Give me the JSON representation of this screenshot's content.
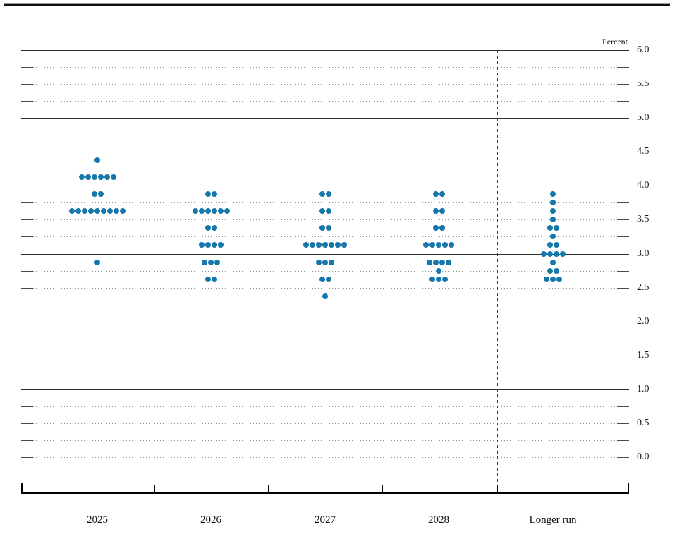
{
  "chart": {
    "percent_label": "Percent",
    "y_ticks": [
      "6.0",
      "5.5",
      "5.0",
      "4.5",
      "4.0",
      "3.5",
      "3.0",
      "2.5",
      "2.0",
      "1.5",
      "1.0",
      "0.5",
      "0.0"
    ]
  },
  "chart_data": {
    "type": "scatter",
    "subtype": "fomc-dot-plot",
    "title": "",
    "xlabel": "",
    "ylabel": "Percent",
    "ylim": [
      0.0,
      6.0
    ],
    "y_tick_step": 0.5,
    "gridline_step": 0.25,
    "grid": "dotted lines every 0.25 percent; solid lines at integer percents; dashed vertical separator before Longer run",
    "legend": "none",
    "categories": [
      "2025",
      "2026",
      "2027",
      "2028",
      "Longer run"
    ],
    "series": [
      {
        "name": "2025",
        "dots": [
          {
            "rate": 4.375,
            "count": 1
          },
          {
            "rate": 4.125,
            "count": 6
          },
          {
            "rate": 3.875,
            "count": 2
          },
          {
            "rate": 3.625,
            "count": 9
          },
          {
            "rate": 2.875,
            "count": 1
          }
        ]
      },
      {
        "name": "2026",
        "dots": [
          {
            "rate": 3.875,
            "count": 2
          },
          {
            "rate": 3.625,
            "count": 6
          },
          {
            "rate": 3.375,
            "count": 2
          },
          {
            "rate": 3.125,
            "count": 4
          },
          {
            "rate": 2.875,
            "count": 3
          },
          {
            "rate": 2.625,
            "count": 2
          }
        ]
      },
      {
        "name": "2027",
        "dots": [
          {
            "rate": 3.875,
            "count": 2
          },
          {
            "rate": 3.625,
            "count": 2
          },
          {
            "rate": 3.375,
            "count": 2
          },
          {
            "rate": 3.125,
            "count": 7
          },
          {
            "rate": 2.875,
            "count": 3
          },
          {
            "rate": 2.625,
            "count": 2
          },
          {
            "rate": 2.375,
            "count": 1
          }
        ]
      },
      {
        "name": "2028",
        "dots": [
          {
            "rate": 3.875,
            "count": 2
          },
          {
            "rate": 3.625,
            "count": 2
          },
          {
            "rate": 3.375,
            "count": 2
          },
          {
            "rate": 3.125,
            "count": 5
          },
          {
            "rate": 2.875,
            "count": 4
          },
          {
            "rate": 2.75,
            "count": 1
          },
          {
            "rate": 2.625,
            "count": 3
          }
        ]
      },
      {
        "name": "Longer run",
        "dots": [
          {
            "rate": 3.875,
            "count": 1
          },
          {
            "rate": 3.75,
            "count": 1
          },
          {
            "rate": 3.625,
            "count": 1
          },
          {
            "rate": 3.5,
            "count": 1
          },
          {
            "rate": 3.375,
            "count": 2
          },
          {
            "rate": 3.25,
            "count": 1
          },
          {
            "rate": 3.125,
            "count": 2
          },
          {
            "rate": 3.0,
            "count": 4
          },
          {
            "rate": 2.875,
            "count": 1
          },
          {
            "rate": 2.75,
            "count": 2
          },
          {
            "rate": 2.625,
            "count": 3
          }
        ]
      }
    ],
    "colors": {
      "dot": "#1070a4",
      "solid_gridline": "#2e2e2e",
      "dotted_gridline": "#8f8f8f"
    }
  }
}
